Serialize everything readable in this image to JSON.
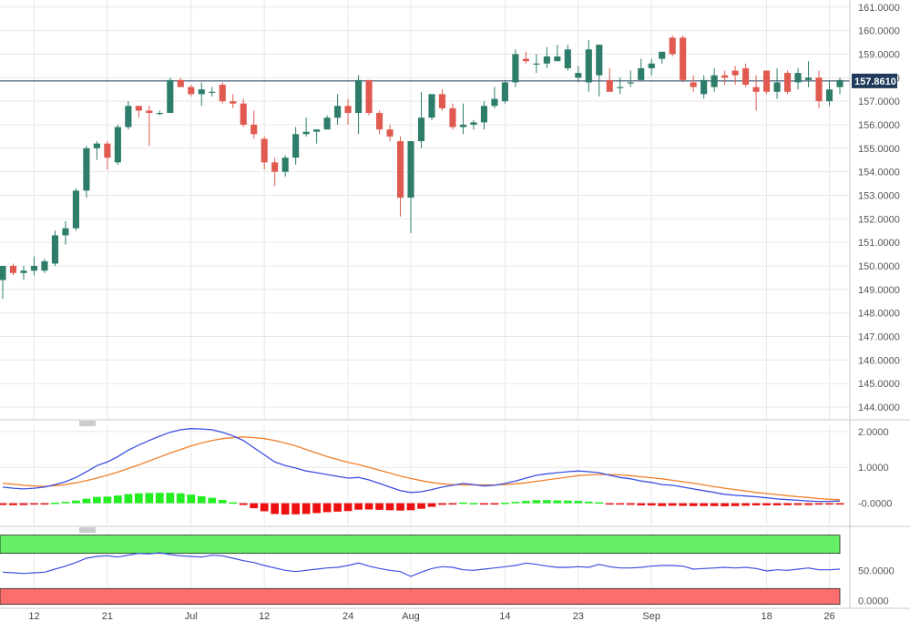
{
  "colors": {
    "up": "#2e7d6b",
    "down": "#e05a50",
    "macd_line": "#3b4fe0",
    "signal_line": "#f07f2a",
    "hist_pos": "#22ee22",
    "hist_neg": "#ee1111",
    "rsi_line": "#3b4fe0",
    "overbought_band": "#66ee66",
    "oversold_band": "#fa6e6e",
    "price_line": "#1f3a5a",
    "last_tag": "#1f3a5a",
    "grid": "#e8e8e8"
  },
  "chart_data": [
    {
      "type": "candlestick",
      "panel": "price",
      "ylim": [
        143.5,
        161.3
      ],
      "yticks": [
        "161.0000",
        "160.0000",
        "159.0000",
        "158.0000",
        "157.0000",
        "156.0000",
        "155.0000",
        "154.0000",
        "153.0000",
        "152.0000",
        "151.0000",
        "150.0000",
        "149.0000",
        "148.0000",
        "147.0000",
        "146.0000",
        "145.0000",
        "144.0000"
      ],
      "last_price": "157.8610",
      "x_labels": [
        {
          "label": "12",
          "index": 3
        },
        {
          "label": "21",
          "index": 10
        },
        {
          "label": "Jul",
          "index": 18
        },
        {
          "label": "12",
          "index": 25
        },
        {
          "label": "24",
          "index": 33
        },
        {
          "label": "Aug",
          "index": 39
        },
        {
          "label": "14",
          "index": 48
        },
        {
          "label": "23",
          "index": 55
        },
        {
          "label": "Sep",
          "index": 62
        },
        {
          "label": "18",
          "index": 73
        },
        {
          "label": "26",
          "index": 79
        }
      ],
      "ohlc": [
        [
          149.4,
          150.0,
          148.6,
          150.0
        ],
        [
          150.0,
          150.1,
          149.6,
          149.7
        ],
        [
          149.7,
          150.0,
          149.4,
          149.8
        ],
        [
          149.8,
          150.4,
          149.6,
          150.0
        ],
        [
          149.8,
          150.3,
          149.7,
          150.2
        ],
        [
          150.1,
          151.5,
          150.0,
          151.3
        ],
        [
          151.3,
          151.9,
          150.9,
          151.6
        ],
        [
          151.6,
          153.3,
          151.5,
          153.2
        ],
        [
          153.2,
          155.1,
          152.9,
          155.0
        ],
        [
          155.0,
          155.3,
          154.5,
          155.2
        ],
        [
          155.2,
          155.3,
          154.1,
          154.6
        ],
        [
          154.4,
          156.0,
          154.3,
          155.9
        ],
        [
          155.9,
          157.0,
          155.8,
          156.8
        ],
        [
          156.8,
          156.7,
          156.3,
          156.6
        ],
        [
          156.6,
          156.8,
          155.1,
          156.5
        ],
        [
          156.5,
          156.6,
          156.4,
          156.5
        ],
        [
          156.5,
          158.0,
          156.5,
          157.9
        ],
        [
          157.9,
          158.0,
          157.6,
          157.6
        ],
        [
          157.6,
          157.7,
          157.2,
          157.3
        ],
        [
          157.3,
          157.8,
          156.8,
          157.5
        ],
        [
          157.4,
          157.6,
          157.2,
          157.4
        ],
        [
          157.7,
          157.8,
          156.9,
          157.0
        ],
        [
          157.0,
          157.3,
          156.7,
          156.9
        ],
        [
          156.9,
          157.1,
          155.9,
          156.0
        ],
        [
          156.0,
          156.6,
          155.4,
          155.6
        ],
        [
          155.4,
          155.5,
          154.1,
          154.4
        ],
        [
          154.4,
          154.6,
          153.4,
          154.0
        ],
        [
          154.0,
          154.7,
          153.8,
          154.6
        ],
        [
          154.6,
          155.9,
          154.3,
          155.6
        ],
        [
          155.6,
          156.3,
          155.5,
          155.7
        ],
        [
          155.7,
          155.7,
          155.2,
          155.8
        ],
        [
          155.8,
          156.4,
          155.8,
          156.3
        ],
        [
          156.3,
          157.3,
          156.0,
          156.8
        ],
        [
          156.8,
          157.1,
          156.0,
          156.5
        ],
        [
          156.5,
          158.1,
          155.6,
          157.9
        ],
        [
          157.9,
          157.9,
          156.4,
          156.5
        ],
        [
          156.5,
          156.6,
          155.6,
          155.8
        ],
        [
          155.8,
          156.0,
          155.3,
          155.5
        ],
        [
          155.3,
          155.5,
          152.1,
          152.9
        ],
        [
          152.9,
          155.2,
          151.4,
          155.3
        ],
        [
          155.3,
          157.4,
          155.0,
          156.3
        ],
        [
          156.3,
          157.3,
          156.2,
          157.3
        ],
        [
          157.3,
          157.5,
          156.6,
          156.7
        ],
        [
          156.7,
          156.9,
          155.8,
          155.9
        ],
        [
          155.9,
          156.9,
          155.6,
          156.0
        ],
        [
          156.0,
          156.2,
          155.8,
          156.1
        ],
        [
          156.1,
          157.0,
          155.8,
          156.8
        ],
        [
          156.8,
          157.6,
          156.7,
          157.1
        ],
        [
          157.0,
          157.9,
          156.9,
          157.8
        ],
        [
          157.8,
          159.2,
          157.6,
          159.0
        ],
        [
          158.8,
          159.1,
          158.6,
          158.7
        ],
        [
          158.6,
          159.0,
          158.2,
          158.6
        ],
        [
          158.6,
          159.3,
          158.4,
          158.9
        ],
        [
          158.7,
          159.4,
          158.7,
          158.9
        ],
        [
          158.4,
          159.4,
          158.3,
          159.2
        ],
        [
          158.0,
          158.5,
          157.8,
          158.2
        ],
        [
          157.8,
          159.6,
          157.4,
          159.2
        ],
        [
          158.1,
          159.4,
          157.2,
          159.4
        ],
        [
          157.9,
          158.4,
          157.4,
          157.4
        ],
        [
          157.6,
          158.0,
          157.3,
          157.6
        ],
        [
          157.8,
          158.3,
          157.6,
          157.8
        ],
        [
          157.9,
          158.8,
          157.9,
          158.4
        ],
        [
          158.4,
          158.8,
          158.1,
          158.6
        ],
        [
          158.8,
          159.1,
          158.6,
          159.1
        ],
        [
          159.7,
          159.8,
          158.9,
          159.0
        ],
        [
          159.7,
          159.8,
          157.8,
          157.9
        ],
        [
          157.8,
          158.1,
          157.4,
          157.6
        ],
        [
          157.3,
          158.1,
          157.1,
          157.9
        ],
        [
          157.6,
          158.4,
          157.4,
          158.1
        ],
        [
          158.1,
          158.3,
          157.7,
          158.0
        ],
        [
          158.3,
          158.5,
          157.7,
          158.1
        ],
        [
          158.4,
          158.6,
          157.6,
          157.7
        ],
        [
          157.6,
          158.1,
          156.6,
          157.4
        ],
        [
          158.3,
          158.3,
          157.3,
          157.4
        ],
        [
          157.4,
          158.4,
          157.1,
          157.8
        ],
        [
          158.2,
          158.3,
          157.3,
          157.4
        ],
        [
          157.8,
          158.4,
          157.5,
          158.2
        ],
        [
          157.9,
          158.7,
          157.6,
          158.0
        ],
        [
          158.0,
          158.3,
          156.7,
          157.0
        ],
        [
          157.0,
          157.9,
          156.8,
          157.5
        ],
        [
          157.6,
          158.0,
          157.3,
          157.9
        ]
      ]
    },
    {
      "type": "line+bar",
      "panel": "macd",
      "ylim": [
        -0.62,
        2.2
      ],
      "yticks": [
        "2.0000",
        "1.0000",
        "-0.0000"
      ],
      "series": [
        {
          "role": "macd",
          "values": [
            0.45,
            0.42,
            0.4,
            0.42,
            0.45,
            0.52,
            0.6,
            0.72,
            0.88,
            1.05,
            1.15,
            1.3,
            1.48,
            1.62,
            1.75,
            1.87,
            1.98,
            2.05,
            2.08,
            2.07,
            2.05,
            1.98,
            1.88,
            1.75,
            1.55,
            1.35,
            1.15,
            1.05,
            0.98,
            0.9,
            0.85,
            0.8,
            0.75,
            0.7,
            0.72,
            0.65,
            0.55,
            0.45,
            0.35,
            0.3,
            0.32,
            0.38,
            0.45,
            0.5,
            0.55,
            0.52,
            0.48,
            0.5,
            0.55,
            0.62,
            0.7,
            0.78,
            0.82,
            0.85,
            0.88,
            0.9,
            0.88,
            0.85,
            0.78,
            0.72,
            0.68,
            0.62,
            0.58,
            0.52,
            0.5,
            0.45,
            0.4,
            0.35,
            0.3,
            0.25,
            0.22,
            0.2,
            0.18,
            0.15,
            0.12,
            0.1,
            0.08,
            0.06,
            0.05,
            0.05,
            0.06
          ]
        },
        {
          "role": "signal",
          "values": [
            0.55,
            0.53,
            0.5,
            0.48,
            0.47,
            0.49,
            0.52,
            0.57,
            0.63,
            0.7,
            0.78,
            0.87,
            0.97,
            1.07,
            1.18,
            1.29,
            1.4,
            1.5,
            1.6,
            1.68,
            1.75,
            1.8,
            1.83,
            1.85,
            1.83,
            1.8,
            1.75,
            1.68,
            1.6,
            1.5,
            1.4,
            1.3,
            1.22,
            1.14,
            1.08,
            1.0,
            0.92,
            0.84,
            0.76,
            0.69,
            0.63,
            0.58,
            0.54,
            0.52,
            0.51,
            0.51,
            0.51,
            0.51,
            0.52,
            0.54,
            0.57,
            0.61,
            0.65,
            0.69,
            0.73,
            0.77,
            0.79,
            0.8,
            0.8,
            0.79,
            0.77,
            0.74,
            0.71,
            0.68,
            0.64,
            0.6,
            0.56,
            0.51,
            0.46,
            0.42,
            0.38,
            0.34,
            0.3,
            0.27,
            0.24,
            0.21,
            0.18,
            0.16,
            0.13,
            0.11,
            0.1
          ]
        }
      ]
    },
    {
      "type": "line",
      "panel": "rsi",
      "ylim": [
        -8,
        115
      ],
      "yticks": [
        "50.0000",
        "0.0000"
      ],
      "bands": {
        "upper": [
          78,
          108
        ],
        "lower": [
          -6,
          20
        ]
      },
      "values": [
        47,
        46,
        45,
        46,
        47,
        52,
        57,
        63,
        70,
        73,
        74,
        72,
        75,
        78,
        77,
        79,
        76,
        74,
        73,
        72,
        75,
        74,
        70,
        66,
        63,
        58,
        54,
        50,
        48,
        50,
        52,
        54,
        55,
        58,
        62,
        57,
        53,
        50,
        48,
        40,
        47,
        53,
        56,
        55,
        51,
        50,
        52,
        54,
        56,
        58,
        62,
        60,
        57,
        55,
        55,
        56,
        55,
        60,
        56,
        54,
        54,
        55,
        57,
        58,
        58,
        57,
        52,
        53,
        54,
        55,
        54,
        55,
        53,
        49,
        51,
        50,
        52,
        54,
        51,
        51,
        52
      ]
    }
  ]
}
